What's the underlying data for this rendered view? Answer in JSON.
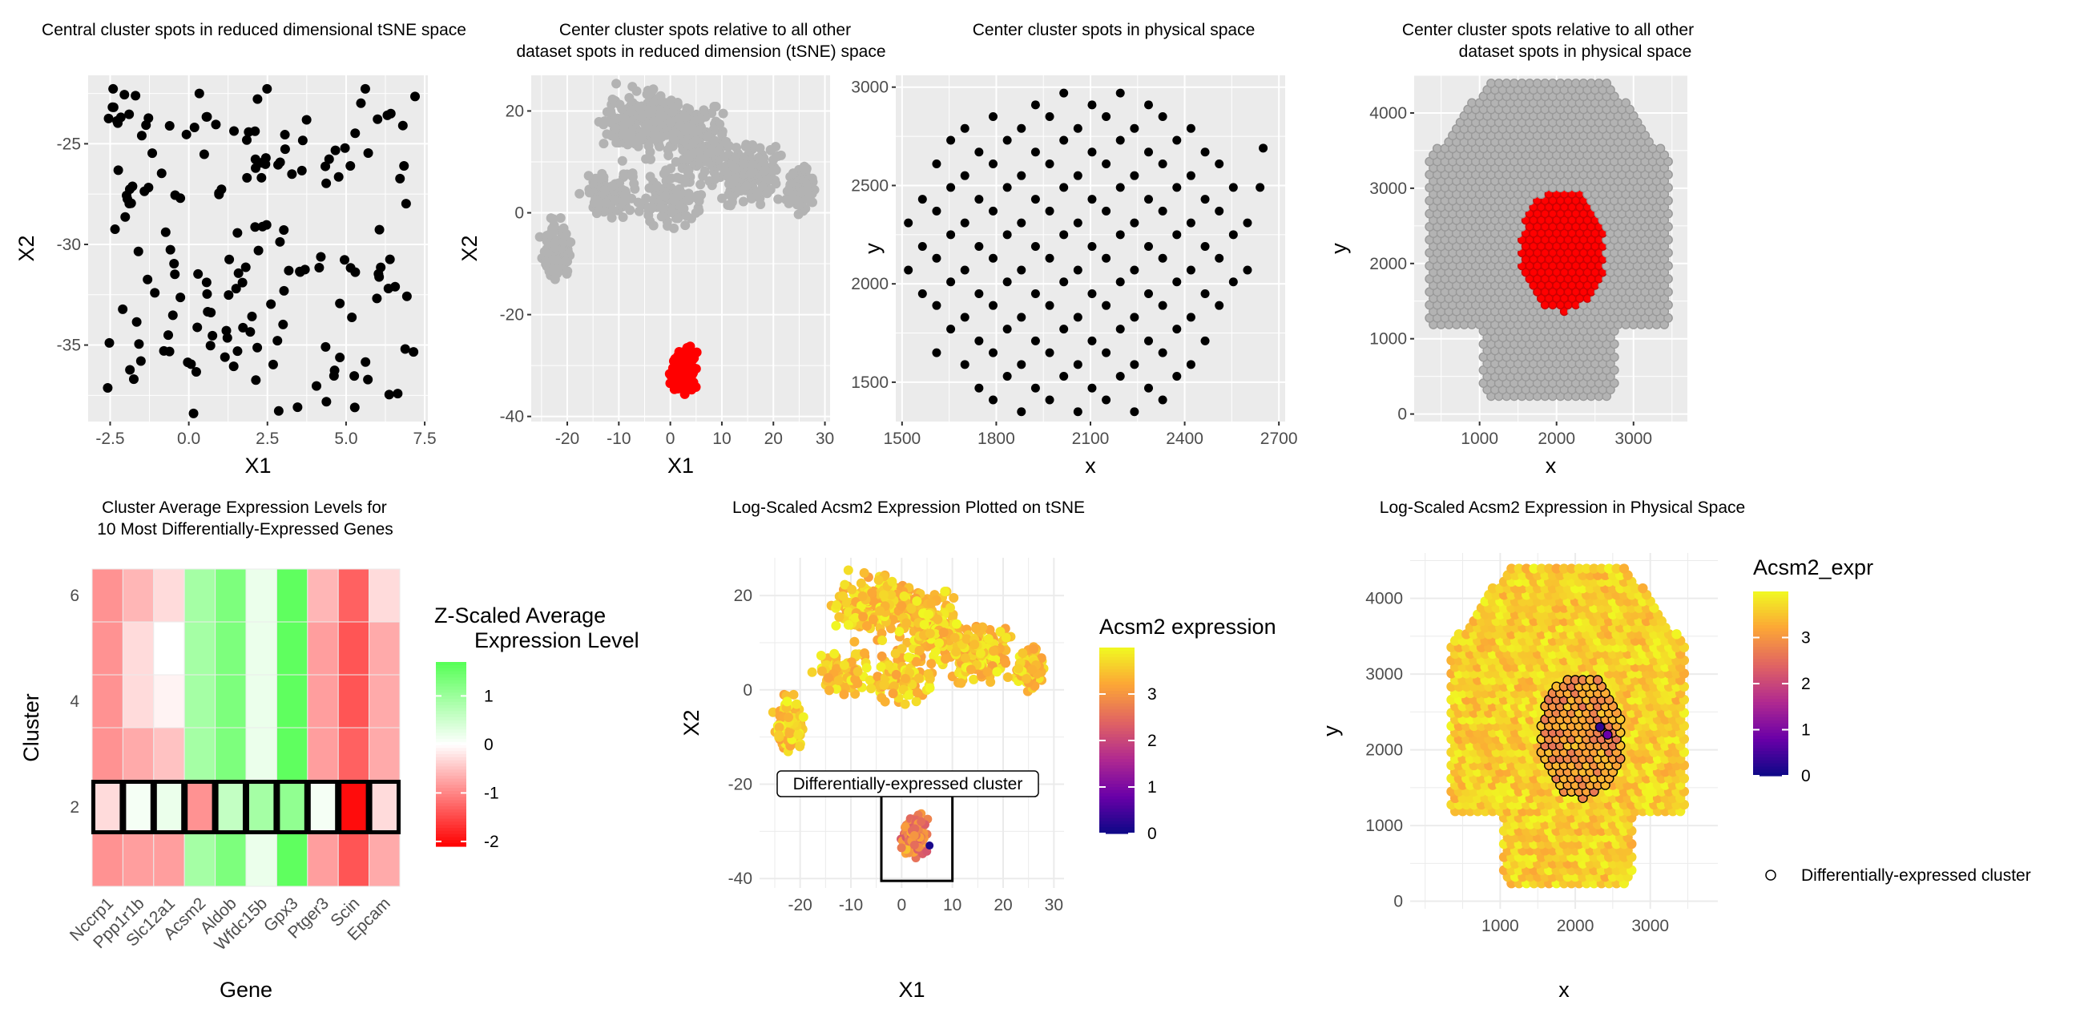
{
  "colors": {
    "panel_bg": "#ebebeb",
    "grid": "#ffffff",
    "black": "#000000",
    "gray": "#b3b3b3",
    "red": "#ff0000",
    "heat_low": "#ff0000",
    "heat_mid": "#ffffff",
    "heat_high": "#55ff55",
    "plasma": [
      "#0d0887",
      "#6a00a8",
      "#b12a90",
      "#e16462",
      "#fca636",
      "#f0f921"
    ]
  },
  "chart_data": [
    {
      "type": "scatter",
      "title": "Central cluster spots in reduced dimensional tSNE space",
      "xlabel": "X1",
      "ylabel": "X2",
      "xlim": [
        -3.2,
        7.6
      ],
      "ylim": [
        -38.8,
        -21.6
      ],
      "xticks": [
        "-2.5",
        "0.0",
        "2.5",
        "5.0",
        "7.5"
      ],
      "yticks": [
        "-25",
        "-30",
        "-35"
      ],
      "series": [
        {
          "color": "#000000",
          "approx_count": 175,
          "x_range": [
            -3,
            7.3
          ],
          "y_range": [
            -38.5,
            -22
          ]
        }
      ]
    },
    {
      "type": "scatter",
      "title": "Center cluster spots relative to all other dataset spots in reduced dimension (tSNE) space",
      "xlabel": "X1",
      "ylabel": "X2",
      "xlim": [
        -27,
        31
      ],
      "ylim": [
        -41,
        27
      ],
      "xticks": [
        "-20",
        "-10",
        "0",
        "10",
        "20",
        "30"
      ],
      "yticks": [
        "20",
        "0",
        "-20",
        "-40"
      ],
      "series": [
        {
          "color": "#b3b3b3",
          "group": "all other spots",
          "approx_count": 900,
          "x_range": [
            -26,
            29
          ],
          "y_range": [
            -22,
            26
          ]
        },
        {
          "color": "#ff0000",
          "group": "center cluster",
          "approx_count": 175,
          "x_range": [
            -3,
            8
          ],
          "y_range": [
            -38,
            -21
          ]
        }
      ]
    },
    {
      "type": "scatter",
      "title": "Center cluster spots in physical space",
      "xlabel": "x",
      "ylabel": "y",
      "xlim": [
        1480,
        2720
      ],
      "ylim": [
        1300,
        3060
      ],
      "xticks": [
        "1500",
        "1800",
        "2100",
        "2400",
        "2700"
      ],
      "yticks": [
        "3000",
        "2500",
        "2000",
        "1500"
      ],
      "series": [
        {
          "color": "#000000",
          "approx_count": 175,
          "x_range": [
            1510,
            2670
          ],
          "y_range": [
            1330,
            3010
          ]
        }
      ]
    },
    {
      "type": "scatter",
      "title": "Center cluster spots relative to all other dataset spots in physical space",
      "xlabel": "x",
      "ylabel": "y",
      "xlim": [
        150,
        3700
      ],
      "ylim": [
        -100,
        4500
      ],
      "xticks": [
        "1000",
        "2000",
        "3000"
      ],
      "yticks": [
        "4000",
        "3000",
        "2000",
        "1000",
        "0"
      ],
      "series": [
        {
          "color": "#b3b3b3",
          "group": "all other spots",
          "x_range": [
            300,
            3500
          ],
          "y_range": [
            150,
            4350
          ]
        },
        {
          "color": "#ff0000",
          "group": "center cluster",
          "x_range": [
            1500,
            2700
          ],
          "y_range": [
            1350,
            3000
          ]
        }
      ]
    },
    {
      "type": "heatmap",
      "title": "Cluster Average Expression Levels for 10 Most Differentially-Expressed Genes",
      "xlabel": "Gene",
      "ylabel": "Cluster",
      "genes": [
        "Nccrp1",
        "Ppp1r1b",
        "Slc12a1",
        "Acsm2",
        "Aldob",
        "Wfdc15b",
        "Gpx3",
        "Ptger3",
        "Scin",
        "Epcam"
      ],
      "clusters": [
        1,
        2,
        3,
        4,
        5,
        6
      ],
      "ytick_labels": [
        "2",
        "4",
        "6"
      ],
      "values_by_cluster": {
        "1": [
          -0.9,
          -0.8,
          -0.8,
          0.9,
          1.3,
          0.2,
          1.6,
          -0.8,
          -1.4,
          -0.7
        ],
        "2": [
          -0.3,
          0.1,
          0.2,
          -0.9,
          0.6,
          0.9,
          1.1,
          0.1,
          -2.0,
          -0.3
        ],
        "3": [
          -0.9,
          -0.7,
          -0.5,
          0.9,
          1.3,
          0.2,
          1.6,
          -0.8,
          -1.3,
          -0.7
        ],
        "4": [
          -0.9,
          -0.3,
          -0.1,
          0.9,
          1.3,
          0.2,
          1.6,
          -0.8,
          -1.4,
          -0.7
        ],
        "5": [
          -0.9,
          -0.3,
          0.0,
          0.9,
          1.3,
          0.2,
          1.6,
          -0.8,
          -1.4,
          -0.7
        ],
        "6": [
          -0.9,
          -0.6,
          -0.3,
          0.9,
          1.3,
          0.2,
          1.6,
          -0.6,
          -1.3,
          -0.3
        ]
      },
      "highlighted_cluster": 2,
      "legend": {
        "title": "Z-Scaled Average Expression Level",
        "ticks": [
          "1",
          "0",
          "-1",
          "-2"
        ],
        "range": [
          -2.1,
          1.7
        ]
      }
    },
    {
      "type": "scatter",
      "title": "Log-Scaled Acsm2 Expression Plotted on tSNE",
      "xlabel": "X1",
      "ylabel": "X2",
      "xlim": [
        -28,
        32
      ],
      "ylim": [
        -42,
        28
      ],
      "xticks": [
        "-20",
        "-10",
        "0",
        "10",
        "20",
        "30"
      ],
      "yticks": [
        "20",
        "0",
        "-20",
        "-40"
      ],
      "annotation": "Differentially-expressed cluster",
      "legend": {
        "title": "Acsm2 expression",
        "ticks": [
          "3",
          "2",
          "1",
          "0"
        ],
        "range": [
          0,
          4
        ]
      }
    },
    {
      "type": "scatter",
      "title": "Log-Scaled Acsm2 Expression in Physical Space",
      "xlabel": "x",
      "ylabel": "y",
      "xlim": [
        -200,
        3900
      ],
      "ylim": [
        -100,
        4600
      ],
      "xticks": [
        "1000",
        "2000",
        "3000"
      ],
      "yticks": [
        "4000",
        "3000",
        "2000",
        "1000",
        "0"
      ],
      "legend": {
        "title": "Acsm2_expr",
        "ticks": [
          "3",
          "2",
          "1",
          "0"
        ],
        "range": [
          0,
          4
        ],
        "shape_label": "Differentially-expressed cluster"
      }
    }
  ],
  "text": {
    "p1_title": "Central cluster spots in reduced dimensional tSNE space",
    "p2_title_1": "Center cluster spots relative to all other",
    "p2_title_2": "dataset spots in reduced dimension (tSNE) space",
    "p3_title": "Center cluster spots in physical space",
    "p4_title_1": "Center cluster spots relative to all other",
    "p4_title_2": "dataset spots in physical space",
    "p5_title_1": "Cluster Average Expression Levels for",
    "p5_title_2": "10 Most Differentially-Expressed Genes",
    "p5_legend_1": "Z-Scaled Average",
    "p5_legend_2": "Expression Level",
    "p6_title": "Log-Scaled Acsm2 Expression Plotted on tSNE",
    "p6_legend": "Acsm2 expression",
    "p6_annotation": "Differentially-expressed cluster",
    "p7_title": "Log-Scaled Acsm2 Expression in Physical Space",
    "p7_legend": "Acsm2_expr",
    "p7_shape_legend": "Differentially-expressed cluster"
  }
}
